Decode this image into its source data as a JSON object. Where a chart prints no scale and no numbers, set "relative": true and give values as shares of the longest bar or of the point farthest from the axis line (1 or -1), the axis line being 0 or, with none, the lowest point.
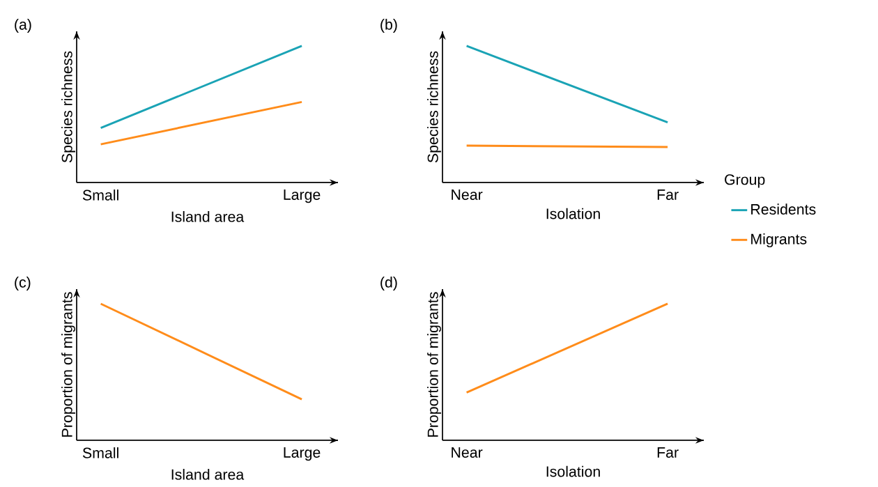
{
  "chart_data": [
    {
      "type": "line",
      "title": "(a)",
      "xlabel": "Island area",
      "ylabel": "Species richness",
      "categories": [
        "Small",
        "Large"
      ],
      "relative": true,
      "series": [
        {
          "color": "#1aa3b5",
          "values": [
            0.4,
            1
          ]
        },
        {
          "color": "#ff8c1a",
          "values": [
            0.28,
            0.59
          ]
        }
      ]
    },
    {
      "type": "line",
      "title": "(b)",
      "xlabel": "Isolation",
      "ylabel": "Species richness",
      "categories": [
        "Near",
        "Far"
      ],
      "relative": true,
      "legend": "right",
      "legend_title": "Group",
      "series": [
        {
          "name": "Residents",
          "color": "#1aa3b5",
          "values": [
            1,
            0.44
          ]
        },
        {
          "name": "Migrants",
          "color": "#ff8c1a",
          "values": [
            0.27,
            0.26
          ]
        }
      ]
    },
    {
      "type": "line",
      "title": "(c)",
      "xlabel": "Island area",
      "ylabel": "Proportion of migrants",
      "categories": [
        "Small",
        "Large"
      ],
      "relative": true,
      "series": [
        {
          "color": "#ff8c1a",
          "values": [
            1,
            0.3
          ]
        }
      ]
    },
    {
      "type": "line",
      "title": "(d)",
      "xlabel": "Isolation",
      "ylabel": "Proportion of migrants",
      "categories": [
        "Near",
        "Far"
      ],
      "relative": true,
      "series": [
        {
          "color": "#ff8c1a",
          "values": [
            0.35,
            1
          ]
        }
      ]
    }
  ]
}
